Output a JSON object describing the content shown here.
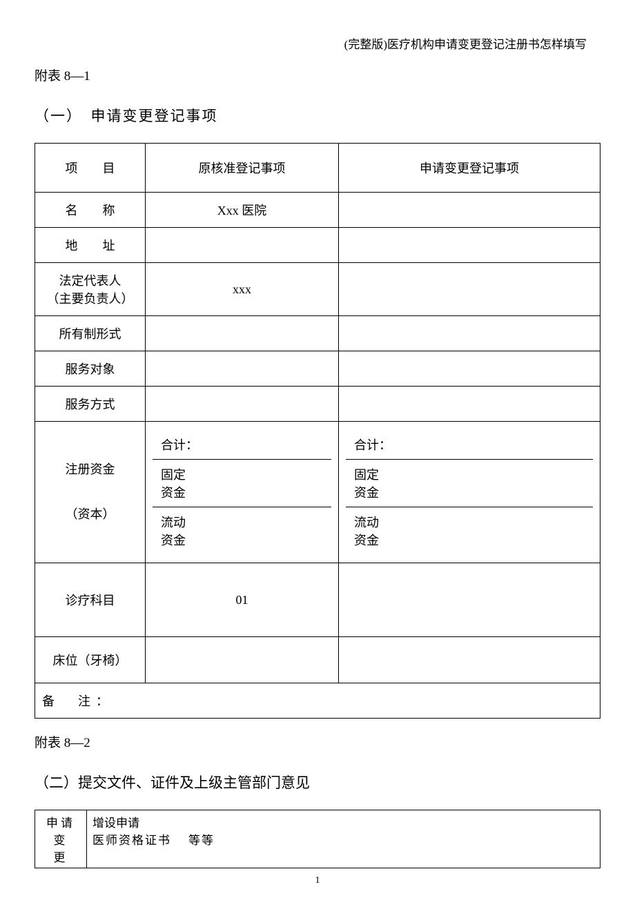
{
  "header": {
    "right_text": "(完整版)医疗机构申请变更登记注册书怎样填写"
  },
  "appendix1": {
    "label": "附表 8—1",
    "section_title": "（一）　申请变更登记事项"
  },
  "table1": {
    "headers": {
      "item": "项　　目",
      "original": "原核准登记事项",
      "change": "申请变更登记事项"
    },
    "rows": {
      "name": {
        "label": "名　　称",
        "original": "Xxx 医院",
        "change": ""
      },
      "address": {
        "label": "地　　址",
        "original": "",
        "change": ""
      },
      "legal_rep": {
        "label_line1": "法定代表人",
        "label_line2": "（主要负责人）",
        "original": "xxx",
        "change": ""
      },
      "ownership": {
        "label": "所有制形式",
        "original": "",
        "change": ""
      },
      "service_target": {
        "label": "服务对象",
        "original": "",
        "change": ""
      },
      "service_mode": {
        "label": "服务方式",
        "original": "",
        "change": ""
      },
      "capital": {
        "label_line1": "注册资金",
        "label_line2": "（资本）",
        "total": "合计：",
        "fixed_line1": "固定",
        "fixed_line2": "资金",
        "flow_line1": "流动",
        "flow_line2": "资金"
      },
      "diagnosis": {
        "label": "诊疗科目",
        "original": "01",
        "change": ""
      },
      "beds": {
        "label": "床位（牙椅）",
        "original": "",
        "change": ""
      },
      "remark": {
        "label": "备　注："
      }
    }
  },
  "appendix2": {
    "label": "附表 8—2",
    "section_title": "（二）提交文件、证件及上级主管部门意见"
  },
  "table2": {
    "col1_line1": "申请变",
    "col1_line2": "更",
    "col2_line1": "增设申请",
    "col2_line2_part1": "医师资格证书",
    "col2_line2_part2": "等等"
  },
  "page_number": "1"
}
